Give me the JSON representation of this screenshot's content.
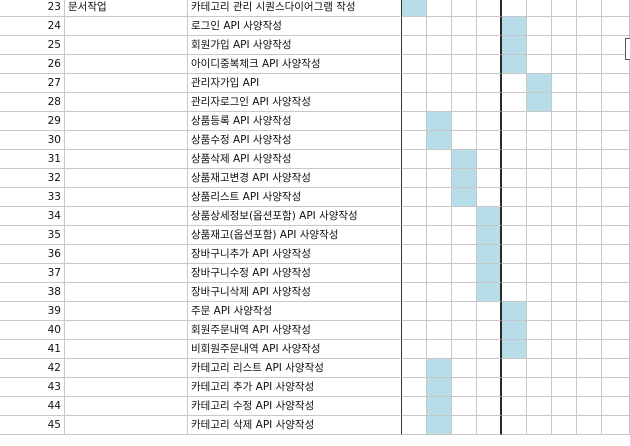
{
  "sheet": {
    "highlight_color": "#b7dde8",
    "rows": [
      {
        "num": "23",
        "category": "문서작업",
        "task": "카테고리 관리 시퀀스다이어그램 작성",
        "bar": 0
      },
      {
        "num": "24",
        "category": "",
        "task": "로그인 API 사양작성",
        "bar": 4
      },
      {
        "num": "25",
        "category": "",
        "task": "회원가입 API 사양작성",
        "bar": 4
      },
      {
        "num": "26",
        "category": "",
        "task": "아이디중복체크 API 사양작성",
        "bar": 4
      },
      {
        "num": "27",
        "category": "",
        "task": "관리자가입 API",
        "bar": 5
      },
      {
        "num": "28",
        "category": "",
        "task": "관리자로그인 API 사양작성",
        "bar": 5
      },
      {
        "num": "29",
        "category": "",
        "task": "상품등록 API 사양작성",
        "bar": 1
      },
      {
        "num": "30",
        "category": "",
        "task": "상품수정 API 사양작성",
        "bar": 1
      },
      {
        "num": "31",
        "category": "",
        "task": "상품삭제 API 사양작성",
        "bar": 2
      },
      {
        "num": "32",
        "category": "",
        "task": "상품재고변경 API 사양작성",
        "bar": 2
      },
      {
        "num": "33",
        "category": "",
        "task": "상품리스트 API 사양작성",
        "bar": 2
      },
      {
        "num": "34",
        "category": "",
        "task": "상품상세정보(옵션포함) API 사양작성",
        "bar": 3
      },
      {
        "num": "35",
        "category": "",
        "task": "상품재고(옵션포함) API 사양작성",
        "bar": 3
      },
      {
        "num": "36",
        "category": "",
        "task": "장바구니추가 API 사양작성",
        "bar": 3
      },
      {
        "num": "37",
        "category": "",
        "task": "장바구니수정 API 사양작성",
        "bar": 3
      },
      {
        "num": "38",
        "category": "",
        "task": "장바구니삭제 API 사양작성",
        "bar": 3
      },
      {
        "num": "39",
        "category": "",
        "task": "주문 API 사양작성",
        "bar": 4
      },
      {
        "num": "40",
        "category": "",
        "task": "회원주문내역 API 사양작성",
        "bar": 4
      },
      {
        "num": "41",
        "category": "",
        "task": "비회원주문내역 API 사양작성",
        "bar": 4
      },
      {
        "num": "42",
        "category": "",
        "task": "카테고리 리스트 API 사양작성",
        "bar": 1
      },
      {
        "num": "43",
        "category": "",
        "task": "카테고리 추가 API 사양작성",
        "bar": 1
      },
      {
        "num": "44",
        "category": "",
        "task": "카테고리 수정 API 사양작성",
        "bar": 1
      },
      {
        "num": "45",
        "category": "",
        "task": "카테고리 삭제 API 사양작성",
        "bar": 1
      }
    ]
  }
}
